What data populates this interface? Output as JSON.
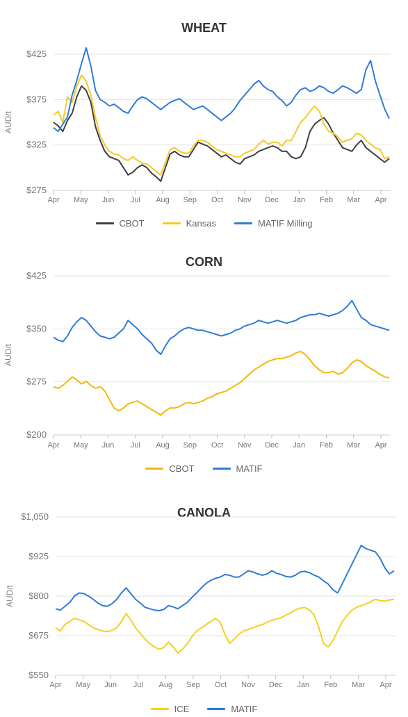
{
  "chart_data": [
    {
      "type": "line",
      "title": "WHEAT",
      "xlabel": "",
      "ylabel": "AUD/t",
      "x_ticks": [
        "Apr",
        "May",
        "Jun",
        "Jul",
        "Aug",
        "Sep",
        "Oct",
        "Nov",
        "Dec",
        "Jan",
        "Feb",
        "Mar",
        "Apr"
      ],
      "y_ticks": [
        "$275",
        "$325",
        "$375",
        "$425"
      ],
      "ylim": [
        275,
        425
      ],
      "grid": true,
      "legend": "bottom",
      "series": [
        {
          "name": "CBOT",
          "color": "#3f3f3f",
          "values": [
            350,
            346,
            340,
            352,
            360,
            378,
            390,
            385,
            372,
            345,
            330,
            318,
            312,
            310,
            308,
            300,
            292,
            295,
            300,
            303,
            300,
            294,
            290,
            285,
            300,
            315,
            318,
            314,
            312,
            312,
            320,
            328,
            326,
            324,
            320,
            316,
            312,
            314,
            310,
            306,
            304,
            310,
            312,
            314,
            318,
            320,
            322,
            324,
            322,
            318,
            318,
            312,
            310,
            312,
            322,
            340,
            348,
            352,
            355,
            348,
            338,
            330,
            322,
            320,
            318,
            325,
            330,
            322,
            318,
            314,
            310,
            306,
            310
          ]
        },
        {
          "name": "Kansas",
          "color": "#f5c928",
          "values": [
            358,
            362,
            350,
            378,
            372,
            390,
            402,
            395,
            380,
            355,
            335,
            325,
            318,
            315,
            314,
            310,
            308,
            312,
            308,
            305,
            304,
            300,
            296,
            292,
            306,
            320,
            322,
            318,
            316,
            316,
            324,
            330,
            330,
            328,
            324,
            320,
            318,
            316,
            314,
            312,
            312,
            316,
            318,
            320,
            326,
            330,
            326,
            328,
            328,
            324,
            330,
            330,
            340,
            350,
            355,
            362,
            368,
            362,
            348,
            340,
            338,
            334,
            328,
            330,
            332,
            338,
            336,
            330,
            326,
            322,
            320,
            310,
            312
          ]
        },
        {
          "name": "MATIF Milling",
          "color": "#2f7bd8",
          "values": [
            344,
            340,
            348,
            356,
            380,
            396,
            415,
            432,
            412,
            385,
            375,
            372,
            368,
            370,
            366,
            362,
            360,
            368,
            375,
            378,
            376,
            372,
            368,
            364,
            368,
            372,
            374,
            376,
            372,
            368,
            364,
            366,
            368,
            364,
            360,
            356,
            352,
            356,
            360,
            366,
            374,
            380,
            386,
            392,
            396,
            390,
            386,
            384,
            378,
            374,
            368,
            372,
            380,
            386,
            388,
            384,
            386,
            390,
            388,
            384,
            382,
            386,
            390,
            388,
            385,
            382,
            386,
            408,
            418,
            396,
            380,
            365,
            354
          ]
        }
      ]
    },
    {
      "type": "line",
      "title": "CORN",
      "xlabel": "",
      "ylabel": "AUD/t",
      "x_ticks": [
        "Apr",
        "May",
        "Jun",
        "Jul",
        "Aug",
        "Sep",
        "Oct",
        "Nov",
        "Dec",
        "Jan",
        "Feb",
        "Mar",
        "Apr"
      ],
      "y_ticks": [
        "$200",
        "$275",
        "$350",
        "$425"
      ],
      "ylim": [
        200,
        425
      ],
      "grid": true,
      "legend": "bottom",
      "series": [
        {
          "name": "CBOT",
          "color": "#f5b800",
          "values": [
            268,
            266,
            270,
            276,
            282,
            278,
            272,
            276,
            270,
            266,
            268,
            262,
            250,
            238,
            234,
            238,
            244,
            246,
            248,
            244,
            240,
            236,
            232,
            228,
            234,
            238,
            238,
            240,
            244,
            246,
            244,
            246,
            248,
            252,
            254,
            258,
            260,
            262,
            266,
            270,
            274,
            280,
            286,
            292,
            296,
            300,
            304,
            306,
            308,
            308,
            310,
            312,
            316,
            318,
            314,
            306,
            298,
            292,
            288,
            288,
            290,
            286,
            288,
            294,
            302,
            306,
            304,
            298,
            294,
            290,
            286,
            282,
            281
          ]
        },
        {
          "name": "MATIF",
          "color": "#2f7bd8",
          "values": [
            338,
            334,
            332,
            340,
            352,
            360,
            366,
            362,
            354,
            346,
            340,
            338,
            336,
            338,
            344,
            350,
            362,
            356,
            350,
            342,
            336,
            330,
            320,
            314,
            326,
            336,
            340,
            346,
            350,
            352,
            350,
            348,
            348,
            346,
            344,
            342,
            340,
            342,
            344,
            348,
            350,
            354,
            356,
            358,
            362,
            360,
            358,
            360,
            362,
            360,
            358,
            360,
            362,
            366,
            368,
            370,
            370,
            372,
            370,
            368,
            370,
            372,
            376,
            382,
            390,
            378,
            366,
            362,
            356,
            354,
            352,
            350,
            348
          ]
        }
      ]
    },
    {
      "type": "line",
      "title": "CANOLA",
      "xlabel": "",
      "ylabel": "AUD/t",
      "x_ticks": [
        "Apr",
        "May",
        "Jun",
        "Jul",
        "Aug",
        "Sep",
        "Oct",
        "Nov",
        "Dec",
        "Jan",
        "Feb",
        "Mar",
        "Apr"
      ],
      "y_ticks": [
        "$550",
        "$675",
        "$800",
        "$925",
        "$1,050"
      ],
      "ylim": [
        550,
        1050
      ],
      "grid": true,
      "legend": "bottom",
      "series": [
        {
          "name": "ICE",
          "color": "#f5d020",
          "values": [
            700,
            690,
            710,
            720,
            730,
            725,
            720,
            710,
            700,
            695,
            690,
            688,
            692,
            700,
            720,
            745,
            725,
            700,
            682,
            665,
            650,
            640,
            632,
            638,
            655,
            640,
            620,
            632,
            650,
            672,
            690,
            700,
            710,
            720,
            730,
            718,
            680,
            650,
            665,
            680,
            690,
            695,
            700,
            706,
            710,
            718,
            724,
            728,
            732,
            740,
            748,
            756,
            762,
            764,
            756,
            740,
            700,
            650,
            640,
            660,
            690,
            720,
            740,
            755,
            765,
            770,
            775,
            782,
            790,
            786,
            784,
            788,
            790
          ]
        },
        {
          "name": "MATIF",
          "color": "#2f7bd8",
          "values": [
            760,
            756,
            768,
            780,
            800,
            810,
            808,
            800,
            790,
            778,
            770,
            768,
            776,
            790,
            810,
            826,
            808,
            790,
            778,
            765,
            760,
            756,
            754,
            758,
            770,
            766,
            760,
            770,
            780,
            796,
            810,
            826,
            840,
            850,
            856,
            860,
            868,
            866,
            860,
            860,
            870,
            880,
            876,
            870,
            866,
            870,
            880,
            872,
            868,
            862,
            860,
            866,
            876,
            878,
            874,
            866,
            860,
            848,
            838,
            820,
            810,
            840,
            870,
            900,
            930,
            960,
            950,
            945,
            940,
            920,
            890,
            870,
            880
          ]
        }
      ]
    }
  ]
}
